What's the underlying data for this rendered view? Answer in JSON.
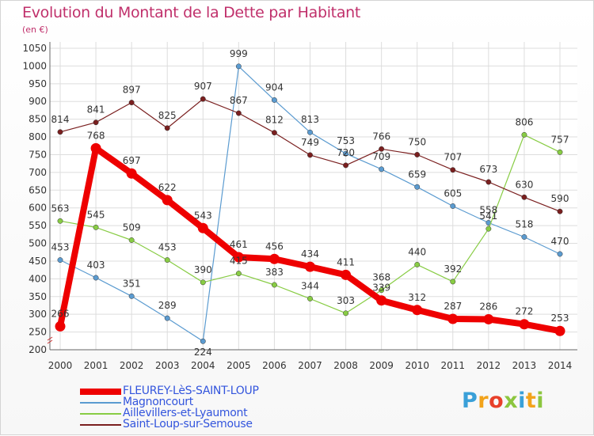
{
  "title": "Evolution du Montant de la Dette par Habitant",
  "unit": "(en €)",
  "logo_text": "Proxiti",
  "chart_data": {
    "type": "line",
    "x": [
      "2000",
      "2001",
      "2002",
      "2003",
      "2004",
      "2005",
      "2006",
      "2007",
      "2008",
      "2009",
      "2010",
      "2011",
      "2012",
      "2013",
      "2014"
    ],
    "ylim": [
      200,
      1050
    ],
    "yticks": [
      200,
      250,
      300,
      350,
      400,
      450,
      500,
      550,
      600,
      650,
      700,
      750,
      800,
      850,
      900,
      950,
      1000,
      1050
    ],
    "grid": true,
    "legend_position": "bottom-left",
    "series": [
      {
        "name": "FLEUREY-LèS-SAINT-LOUP",
        "color": "#ee0000",
        "emphasis": true,
        "values": [
          266,
          768,
          697,
          622,
          543,
          461,
          456,
          434,
          411,
          339,
          312,
          287,
          286,
          272,
          253
        ]
      },
      {
        "name": "Magnoncourt",
        "color": "#5b9bd0",
        "emphasis": false,
        "values": [
          453,
          403,
          351,
          289,
          224,
          999,
          904,
          813,
          753,
          709,
          659,
          605,
          558,
          518,
          470
        ]
      },
      {
        "name": "Aillevillers-et-Lyaumont",
        "color": "#88cc44",
        "emphasis": false,
        "values": [
          563,
          545,
          509,
          453,
          390,
          415,
          383,
          344,
          303,
          368,
          440,
          392,
          541,
          806,
          757
        ]
      },
      {
        "name": "Saint-Loup-sur-Semouse",
        "color": "#7a1f1f",
        "emphasis": false,
        "values": [
          814,
          841,
          897,
          825,
          907,
          867,
          812,
          749,
          720,
          766,
          750,
          707,
          673,
          630,
          590
        ]
      }
    ]
  }
}
